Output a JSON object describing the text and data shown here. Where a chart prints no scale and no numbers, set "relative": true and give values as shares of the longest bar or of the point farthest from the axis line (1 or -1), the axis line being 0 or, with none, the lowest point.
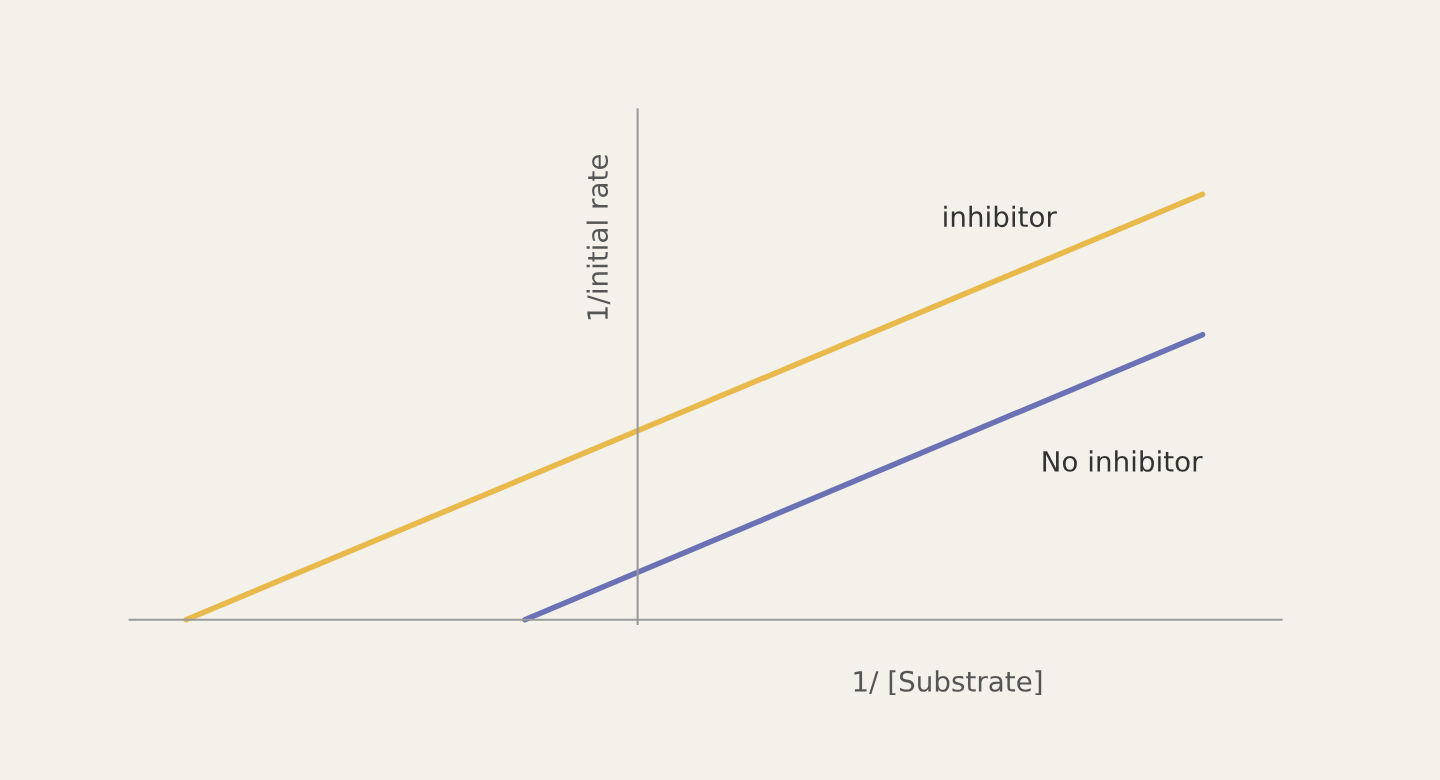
{
  "chart_data": {
    "type": "line",
    "relative": true,
    "xlabel": "1/ [Substrate]",
    "ylabel": "1/initial rate",
    "categories": [
      null,
      null,
      null,
      null,
      null,
      null,
      null,
      null,
      null,
      null
    ],
    "series": [
      {
        "name": "inhibitor",
        "color": "#e9b94c",
        "values": [
          0,
          null,
          null,
          null,
          null,
          null,
          null,
          null,
          null,
          1.0
        ]
      },
      {
        "name": "No inhibitor",
        "color": "#6a72b5",
        "values": [
          null,
          null,
          null,
          0,
          null,
          null,
          null,
          null,
          null,
          0.67
        ]
      }
    ],
    "legend": false,
    "marker": "none",
    "line_style": "solid"
  }
}
